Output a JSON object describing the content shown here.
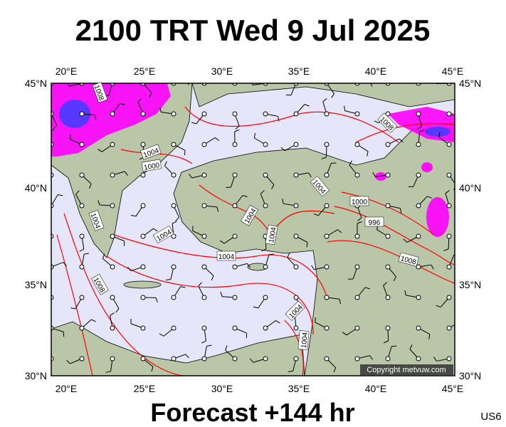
{
  "header": {
    "title": "2100 TRT Wed 9 Jul 2025"
  },
  "footer": {
    "subtitle": "Forecast +144 hr",
    "code": "US6"
  },
  "map": {
    "lon_labels": [
      "20°E",
      "25°E",
      "30°E",
      "35°E",
      "40°E",
      "45°E"
    ],
    "lat_labels": [
      "45°N",
      "40°N",
      "35°N",
      "30°N"
    ],
    "copyright": "Copyright metvuw.com",
    "isobar_labels": [
      "1008",
      "1004",
      "1000",
      "1004",
      "1008",
      "1004",
      "1004",
      "1004",
      "1004",
      "1004",
      "1000",
      "996",
      "1008",
      "1008",
      "1004",
      "1004"
    ]
  }
}
